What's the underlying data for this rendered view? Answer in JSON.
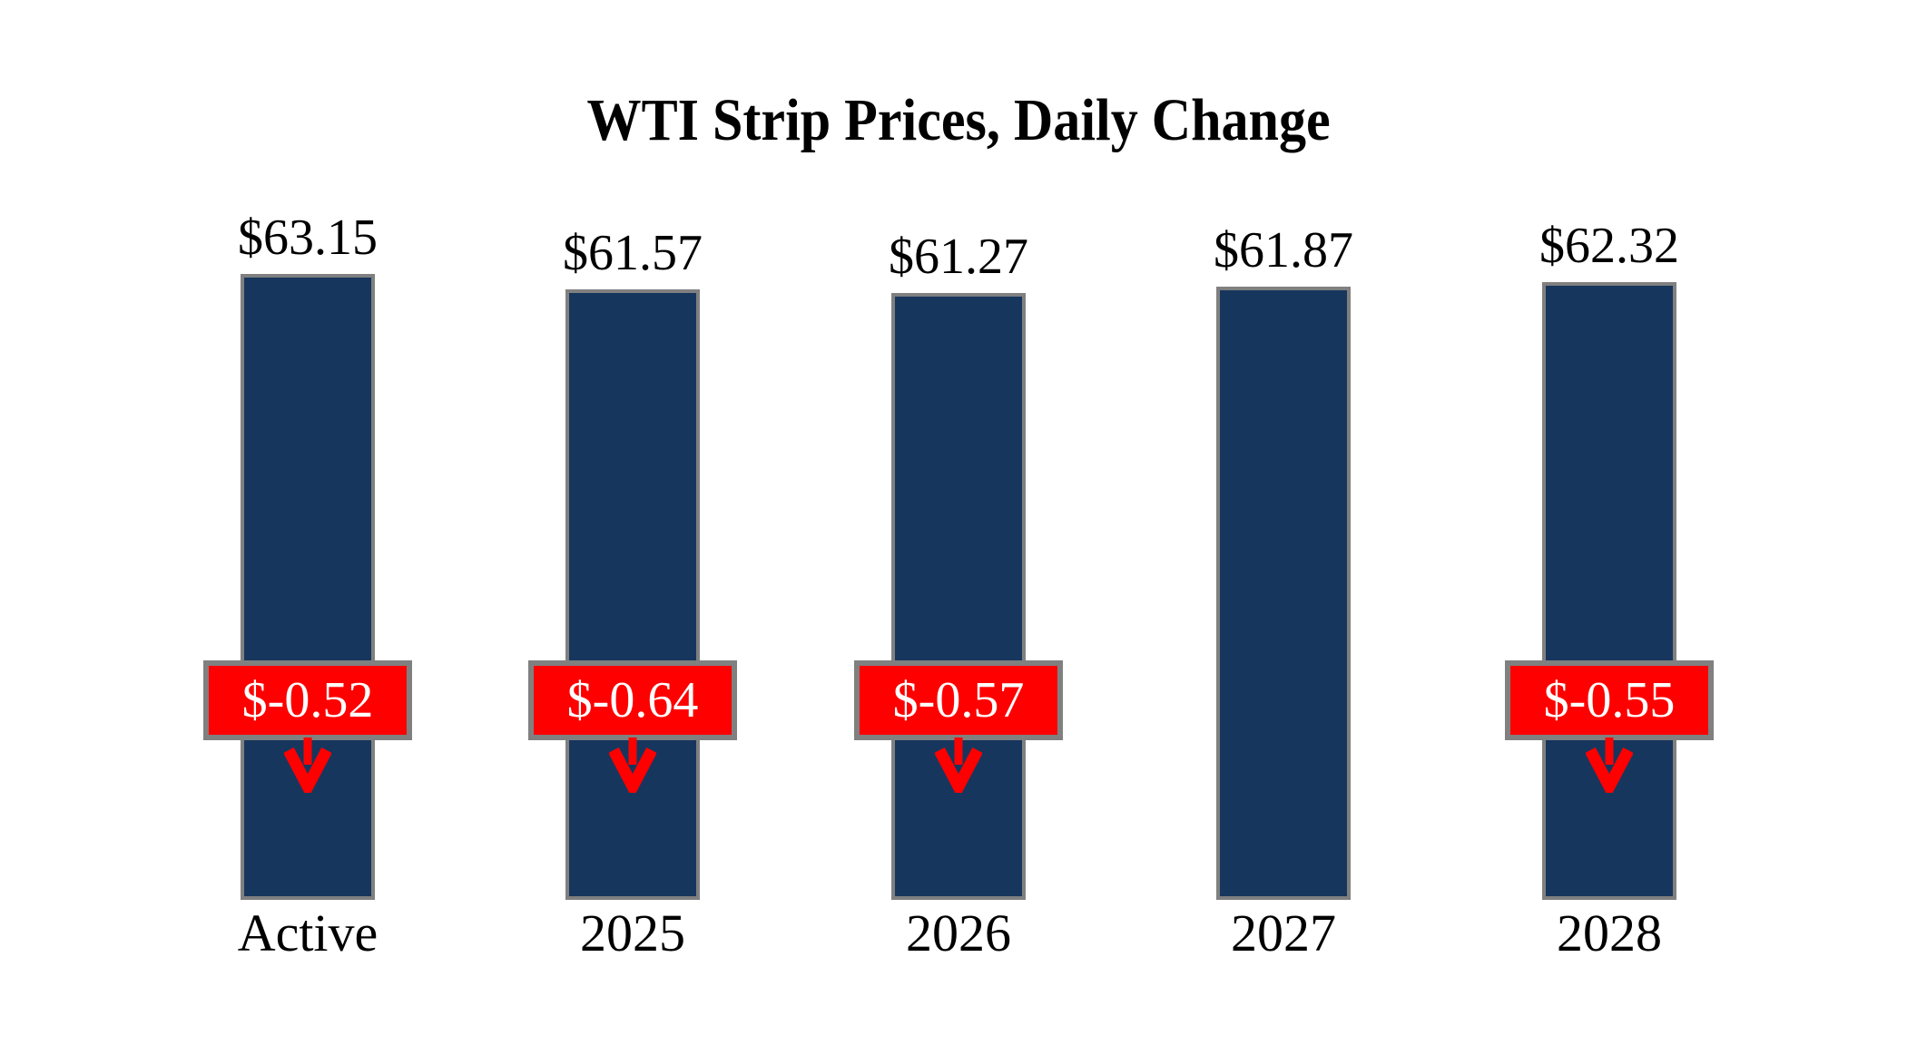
{
  "title": "WTI Strip Prices, Daily Change",
  "colors": {
    "background": "#ffffff",
    "bar_fill": "#17365D",
    "bar_border": "#808080",
    "badge_fill": "#FF0000",
    "badge_border": "#808080",
    "badge_text": "#FFFFFF",
    "arrow": "#FF0000",
    "label_text": "#000000"
  },
  "chart_data": {
    "type": "bar",
    "title": "WTI Strip Prices, Daily Change",
    "categories": [
      "Active",
      "2025",
      "2026",
      "2027",
      "2028"
    ],
    "values": [
      63.15,
      61.57,
      61.27,
      61.87,
      62.32
    ],
    "value_labels": [
      "$63.15",
      "$61.57",
      "$61.27",
      "$61.87",
      "$62.32"
    ],
    "changes": [
      -0.52,
      -0.64,
      -0.57,
      null,
      -0.55
    ],
    "change_labels": [
      "$-0.52",
      "$-0.64",
      "$-0.57",
      null,
      "$-0.55"
    ],
    "change_direction_icon": "down-arrow",
    "xlabel": "",
    "ylabel": "",
    "ylim": [
      0,
      65
    ],
    "grid": false,
    "legend": false,
    "bar_baseline": 0
  }
}
